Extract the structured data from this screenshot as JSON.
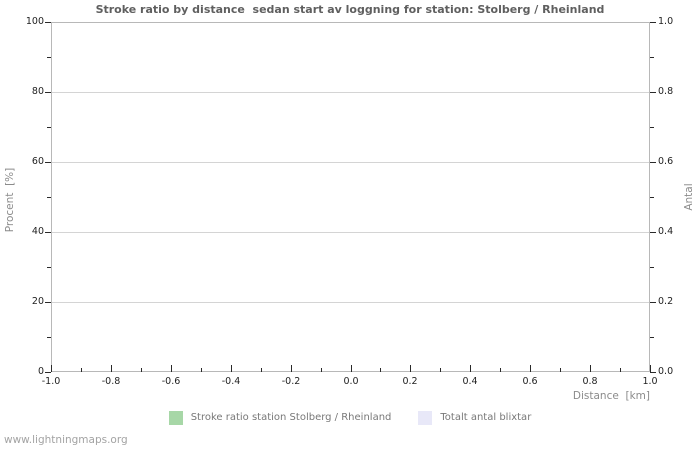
{
  "watermark": "www.lightningmaps.org",
  "colors": {
    "background": "#ffffff",
    "title": "#5f5f5f",
    "axis_label": "#8b8b8b",
    "tick_label": "#1f1f1f",
    "tick": "#2a2a2a",
    "grid": "#d4d4d4",
    "border": "#b8b8b8",
    "legend_text": "#787878",
    "watermark": "#a3a3a3"
  },
  "chart_data": {
    "type": "bar",
    "title": "Stroke ratio by distance  sedan start av loggning for station: Stolberg / Rheinland",
    "xlabel": "Distance  [km]",
    "ylabel_left": "Procent  [%]",
    "ylabel_right": "Antal",
    "xlim": [
      -1.0,
      1.0
    ],
    "ylim_left": [
      0,
      100
    ],
    "ylim_right": [
      0.0,
      1.0
    ],
    "x_ticks": [
      "-1.0",
      "-0.8",
      "-0.6",
      "-0.4",
      "-0.2",
      "0.0",
      "0.2",
      "0.4",
      "0.6",
      "0.8",
      "1.0"
    ],
    "x_minor_per_interval": 1,
    "y_left_ticks": [
      "0",
      "20",
      "40",
      "60",
      "80",
      "100"
    ],
    "y_right_ticks": [
      "0.0",
      "0.2",
      "0.4",
      "0.6",
      "0.8",
      "1.0"
    ],
    "y_minor_per_interval": 1,
    "grid": true,
    "grid_axis": "horizontal-only",
    "legend_position": "bottom",
    "series": [
      {
        "name": "Stroke ratio station Stolberg / Rheinland",
        "color": "#a7d7a7",
        "values": []
      },
      {
        "name": "Totalt antal blixtar",
        "color": "#e8e8f8",
        "values": []
      }
    ]
  }
}
